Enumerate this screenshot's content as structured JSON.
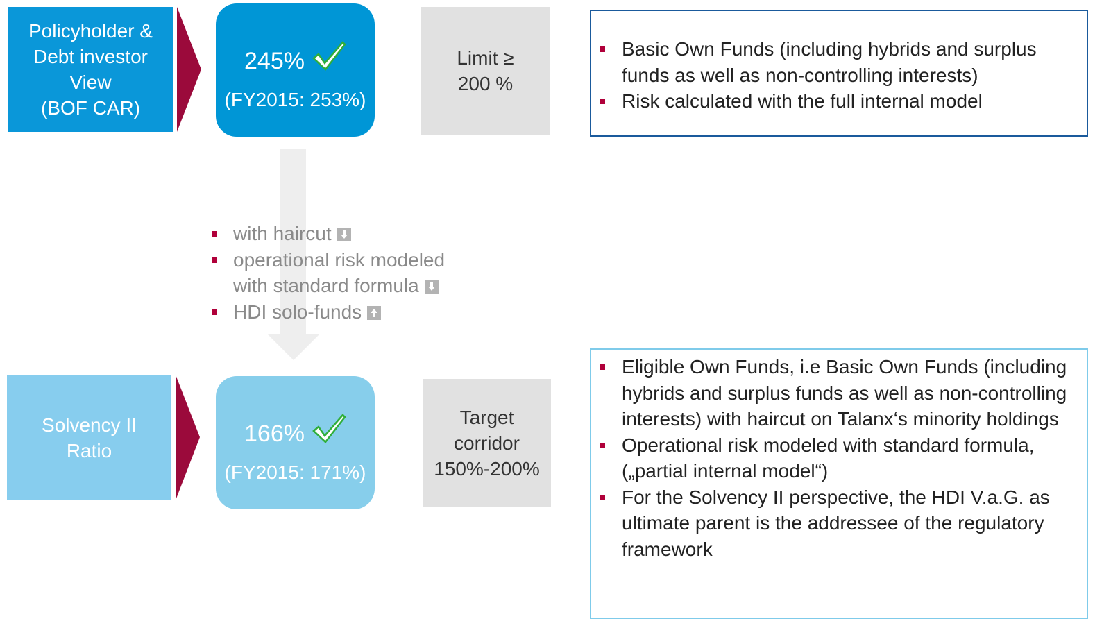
{
  "top": {
    "label": [
      "Policyholder &",
      "Debt investor",
      "View",
      "(BOF CAR)"
    ],
    "ratio": "245%",
    "prior": "(FY2015: 253%)",
    "limit": [
      "Limit ≥",
      "200 %"
    ],
    "bullets": [
      "Basic Own Funds (including hybrids and surplus funds as well as non-controlling interests)",
      "Risk calculated with the full internal model"
    ]
  },
  "transition": {
    "bullets": [
      "with haircut",
      "operational risk modeled with standard formula",
      "HDI solo-funds"
    ]
  },
  "bottom": {
    "label": [
      "Solvency II",
      "Ratio"
    ],
    "ratio": "166%",
    "prior": "(FY2015: 171%)",
    "limit": [
      "Target",
      "corridor",
      "150%-200%"
    ],
    "bullets": [
      "Eligible Own Funds, i.e Basic Own Funds (including hybrids and surplus funds as well as non-controlling interests) with  haircut on Talanx‘s minority holdings",
      "Operational risk modeled with standard formula, („partial internal model“)",
      "For the Solvency II perspective, the HDI V.a.G. as ultimate parent is the addressee of the regulatory framework"
    ]
  }
}
